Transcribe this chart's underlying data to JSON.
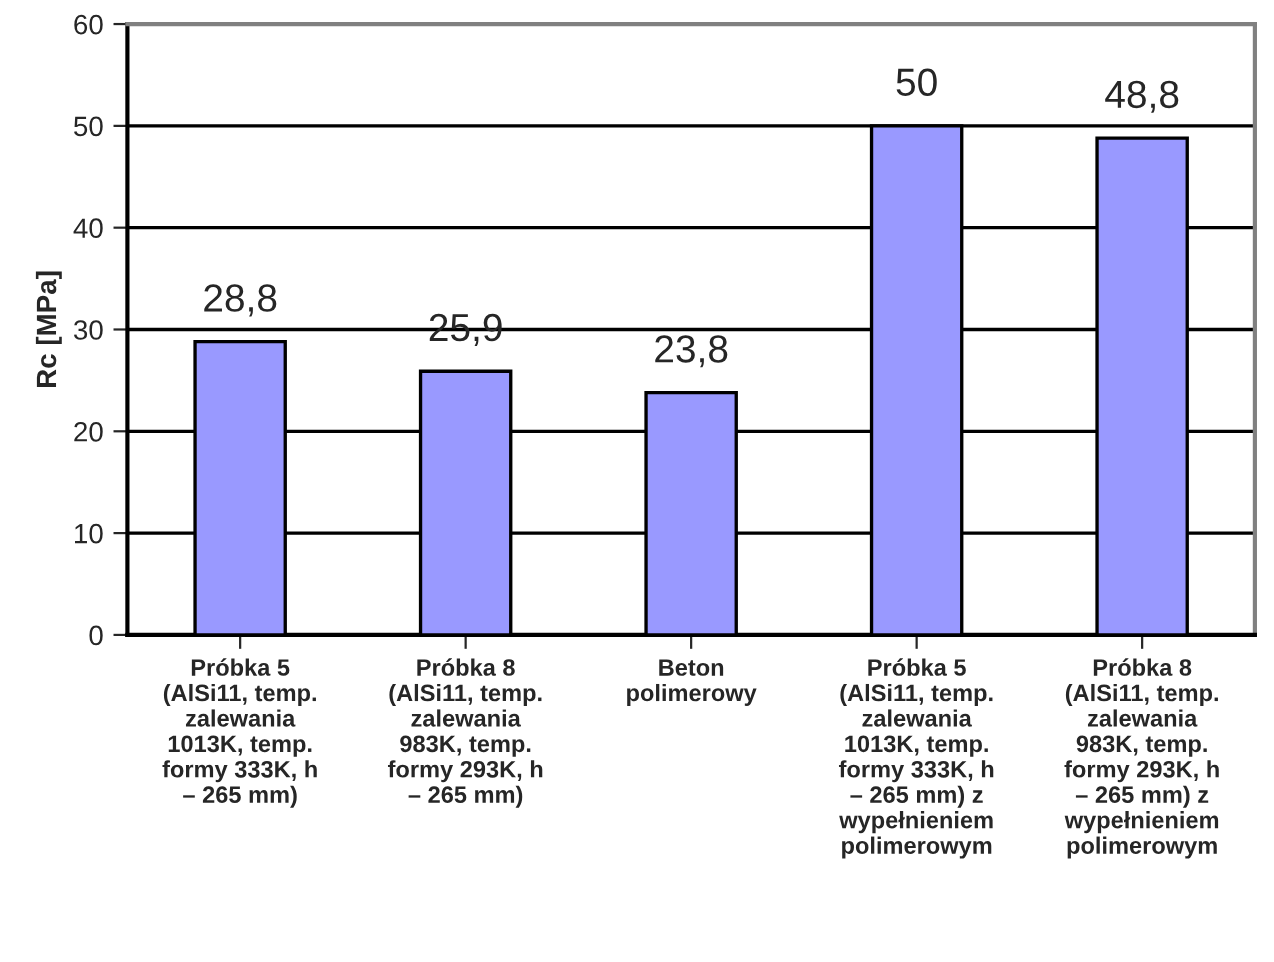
{
  "chart_data": {
    "type": "bar",
    "ylabel": "Rc [MPa]",
    "categories": [
      "Próbka 5\n(AlSi11, temp.\nzalewania\n1013K, temp.\nformy 333K, h\n– 265 mm)",
      "Próbka 8\n(AlSi11, temp.\nzalewania\n983K, temp.\nformy 293K, h\n– 265 mm)",
      "Beton\npolimerowy",
      "Próbka 5\n(AlSi11, temp.\nzalewania\n1013K, temp.\nformy 333K, h\n– 265 mm) z\nwypełnieniem\npolimerowym",
      "Próbka 8\n(AlSi11, temp.\nzalewania\n983K, temp.\nformy 293K, h\n– 265 mm) z\nwypełnieniem\npolimerowym"
    ],
    "values": [
      28.8,
      25.9,
      23.8,
      50,
      48.8
    ],
    "value_labels": [
      "28,8",
      "25,9",
      "23,8",
      "50",
      "48,8"
    ],
    "color": "#9999ff",
    "ylim": [
      0,
      60
    ],
    "yticks": [
      0,
      10,
      20,
      30,
      40,
      50,
      60
    ],
    "grid": "y",
    "legend": false
  }
}
